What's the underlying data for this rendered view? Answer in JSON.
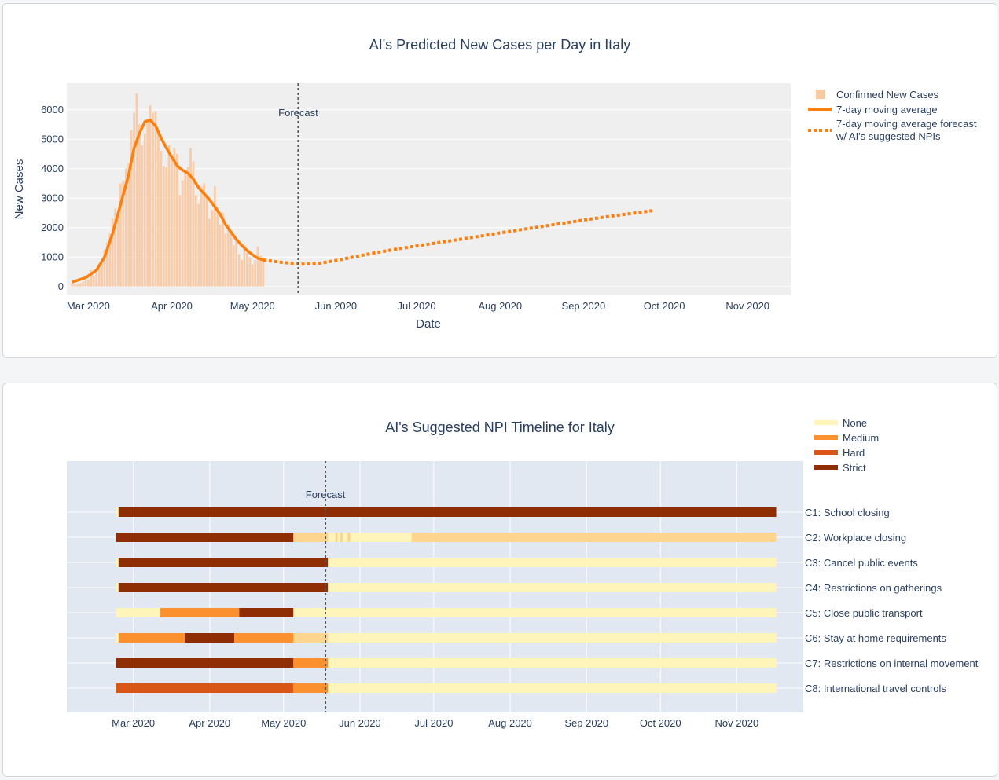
{
  "charts": [
    {
      "title": "AI's Predicted New Cases per Day in Italy",
      "xlabel": "Date",
      "ylabel": "New Cases",
      "forecast_label": "Forecast",
      "legend": [
        "Confirmed New Cases",
        "7-day moving average",
        "7-day moving average forecast",
        "w/ AI's suggested NPIs"
      ]
    },
    {
      "title": "AI's Suggested NPI Timeline for Italy",
      "forecast_label": "Forecast",
      "legend": [
        "None",
        "Medium",
        "Hard",
        "Strict"
      ]
    }
  ],
  "colors": {
    "accent_orange": "#ff7f0e",
    "bar_fill": "#f8c8a0",
    "plot_bg_top": "#efefef",
    "plot_bg_bottom": "#e2e8f2",
    "none": "#fff5ba",
    "light": "#fdd58e",
    "medium": "#fb902e",
    "hard": "#d95716",
    "strict": "#8f2d04"
  },
  "chart_data": [
    {
      "type": "bar",
      "title": "AI's Predicted New Cases per Day in Italy",
      "xlabel": "Date",
      "ylabel": "New Cases",
      "x_range": [
        "2020-02-22",
        "2020-11-17"
      ],
      "ylim": [
        -300,
        6900
      ],
      "y_ticks": [
        0,
        1000,
        2000,
        3000,
        4000,
        5000,
        6000
      ],
      "x_ticks": [
        "Mar 2020",
        "Apr 2020",
        "May 2020",
        "Jun 2020",
        "Jul 2020",
        "Aug 2020",
        "Sep 2020",
        "Oct 2020",
        "Nov 2020"
      ],
      "grid": true,
      "legend_position": "right",
      "forecast_date": "2020-05-18",
      "confirmed_start": "2020-02-24",
      "confirmed_new_cases": [
        120,
        80,
        90,
        110,
        160,
        200,
        240,
        560,
        350,
        460,
        600,
        780,
        1250,
        1500,
        1800,
        2300,
        2650,
        2500,
        3500,
        3600,
        4000,
        4200,
        5300,
        5900,
        6550,
        5500,
        4800,
        5200,
        5600,
        6150,
        5900,
        5950,
        5300,
        4600,
        4100,
        4050,
        4800,
        4300,
        4700,
        4500,
        3100,
        3600,
        3900,
        4050,
        4700,
        4250,
        3100,
        2800,
        3400,
        3500,
        3050,
        2300,
        2600,
        3400,
        2700,
        2100,
        2500,
        1800,
        2100,
        1800,
        1400,
        1600,
        1100,
        900,
        1400,
        1150,
        1000,
        750,
        900,
        1350,
        1050,
        950
      ],
      "series": [
        {
          "name": "7-day moving average",
          "values": [
            [
              0,
              150
            ],
            [
              5,
              300
            ],
            [
              9,
              550
            ],
            [
              12,
              1000
            ],
            [
              15,
              1800
            ],
            [
              18,
              2800
            ],
            [
              21,
              3800
            ],
            [
              23,
              4700
            ],
            [
              25,
              5200
            ],
            [
              27,
              5600
            ],
            [
              29,
              5650
            ],
            [
              31,
              5450
            ],
            [
              33,
              5050
            ],
            [
              35,
              4700
            ],
            [
              37,
              4400
            ],
            [
              39,
              4100
            ],
            [
              41,
              3950
            ],
            [
              43,
              3850
            ],
            [
              45,
              3650
            ],
            [
              47,
              3350
            ],
            [
              49,
              3150
            ],
            [
              51,
              2950
            ],
            [
              53,
              2700
            ],
            [
              55,
              2450
            ],
            [
              57,
              2100
            ],
            [
              59,
              1850
            ],
            [
              61,
              1600
            ],
            [
              63,
              1400
            ],
            [
              65,
              1220
            ],
            [
              67,
              1080
            ],
            [
              69,
              960
            ],
            [
              71,
              900
            ]
          ]
        },
        {
          "name": "7-day moving average forecast w/ AI's suggested NPIs",
          "values": [
            [
              71,
              900
            ],
            [
              78,
              820
            ],
            [
              85,
              760
            ],
            [
              92,
              790
            ],
            [
              99,
              900
            ],
            [
              106,
              1030
            ],
            [
              113,
              1150
            ],
            [
              121,
              1280
            ],
            [
              131,
              1420
            ],
            [
              141,
              1560
            ],
            [
              151,
              1700
            ],
            [
              161,
              1850
            ],
            [
              171,
              1990
            ],
            [
              181,
              2130
            ],
            [
              191,
              2270
            ],
            [
              201,
              2400
            ],
            [
              211,
              2520
            ],
            [
              216,
              2580
            ]
          ]
        }
      ]
    },
    {
      "type": "timeline",
      "title": "AI's Suggested NPI Timeline for Italy",
      "levels": [
        "None",
        "Medium",
        "Hard",
        "Strict"
      ],
      "x_range": [
        "2020-02-03",
        "2020-11-28"
      ],
      "x_ticks": [
        "Mar 2020",
        "Apr 2020",
        "May 2020",
        "Jun 2020",
        "Jul 2020",
        "Aug 2020",
        "Sep 2020",
        "Oct 2020",
        "Nov 2020"
      ],
      "forecast_date": "2020-05-18",
      "rows": [
        {
          "label": "C1: School closing",
          "segments": [
            [
              "2020-02-23",
              "2020-02-24",
              "None"
            ],
            [
              "2020-02-24",
              "2020-11-17",
              "Strict"
            ]
          ]
        },
        {
          "label": "C2: Workplace closing",
          "segments": [
            [
              "2020-02-23",
              "2020-05-05",
              "Strict"
            ],
            [
              "2020-05-05",
              "2020-05-19",
              "Light"
            ],
            [
              "2020-05-19",
              "2020-05-22",
              "None"
            ],
            [
              "2020-05-22",
              "2020-05-23",
              "Light"
            ],
            [
              "2020-05-23",
              "2020-05-24",
              "None"
            ],
            [
              "2020-05-24",
              "2020-05-25",
              "Light"
            ],
            [
              "2020-05-25",
              "2020-05-27",
              "None"
            ],
            [
              "2020-05-27",
              "2020-05-28",
              "Light"
            ],
            [
              "2020-05-28",
              "2020-06-22",
              "None"
            ],
            [
              "2020-06-22",
              "2020-11-17",
              "Light"
            ]
          ]
        },
        {
          "label": "C3: Cancel public events",
          "segments": [
            [
              "2020-02-23",
              "2020-02-24",
              "None"
            ],
            [
              "2020-02-24",
              "2020-05-19",
              "Strict"
            ],
            [
              "2020-05-19",
              "2020-11-17",
              "None"
            ]
          ]
        },
        {
          "label": "C4: Restrictions on gatherings",
          "segments": [
            [
              "2020-02-23",
              "2020-02-24",
              "None"
            ],
            [
              "2020-02-24",
              "2020-05-19",
              "Strict"
            ],
            [
              "2020-05-19",
              "2020-11-17",
              "None"
            ]
          ]
        },
        {
          "label": "C5: Close public transport",
          "segments": [
            [
              "2020-02-23",
              "2020-03-12",
              "None"
            ],
            [
              "2020-03-12",
              "2020-04-13",
              "Medium"
            ],
            [
              "2020-04-13",
              "2020-05-05",
              "Strict"
            ],
            [
              "2020-05-05",
              "2020-11-17",
              "None"
            ]
          ]
        },
        {
          "label": "C6: Stay at home requirements",
          "segments": [
            [
              "2020-02-23",
              "2020-02-24",
              "None"
            ],
            [
              "2020-02-24",
              "2020-03-22",
              "Medium"
            ],
            [
              "2020-03-22",
              "2020-04-11",
              "Strict"
            ],
            [
              "2020-04-11",
              "2020-05-05",
              "Medium"
            ],
            [
              "2020-05-05",
              "2020-05-19",
              "Light"
            ],
            [
              "2020-05-19",
              "2020-11-17",
              "None"
            ]
          ]
        },
        {
          "label": "C7: Restrictions on internal movement",
          "segments": [
            [
              "2020-02-23",
              "2020-05-05",
              "Strict"
            ],
            [
              "2020-05-05",
              "2020-05-19",
              "Medium"
            ],
            [
              "2020-05-19",
              "2020-11-17",
              "None"
            ]
          ]
        },
        {
          "label": "C8: International travel controls",
          "segments": [
            [
              "2020-02-23",
              "2020-05-05",
              "Hard"
            ],
            [
              "2020-05-05",
              "2020-05-19",
              "Medium"
            ],
            [
              "2020-05-19",
              "2020-11-17",
              "None"
            ]
          ]
        }
      ]
    }
  ]
}
